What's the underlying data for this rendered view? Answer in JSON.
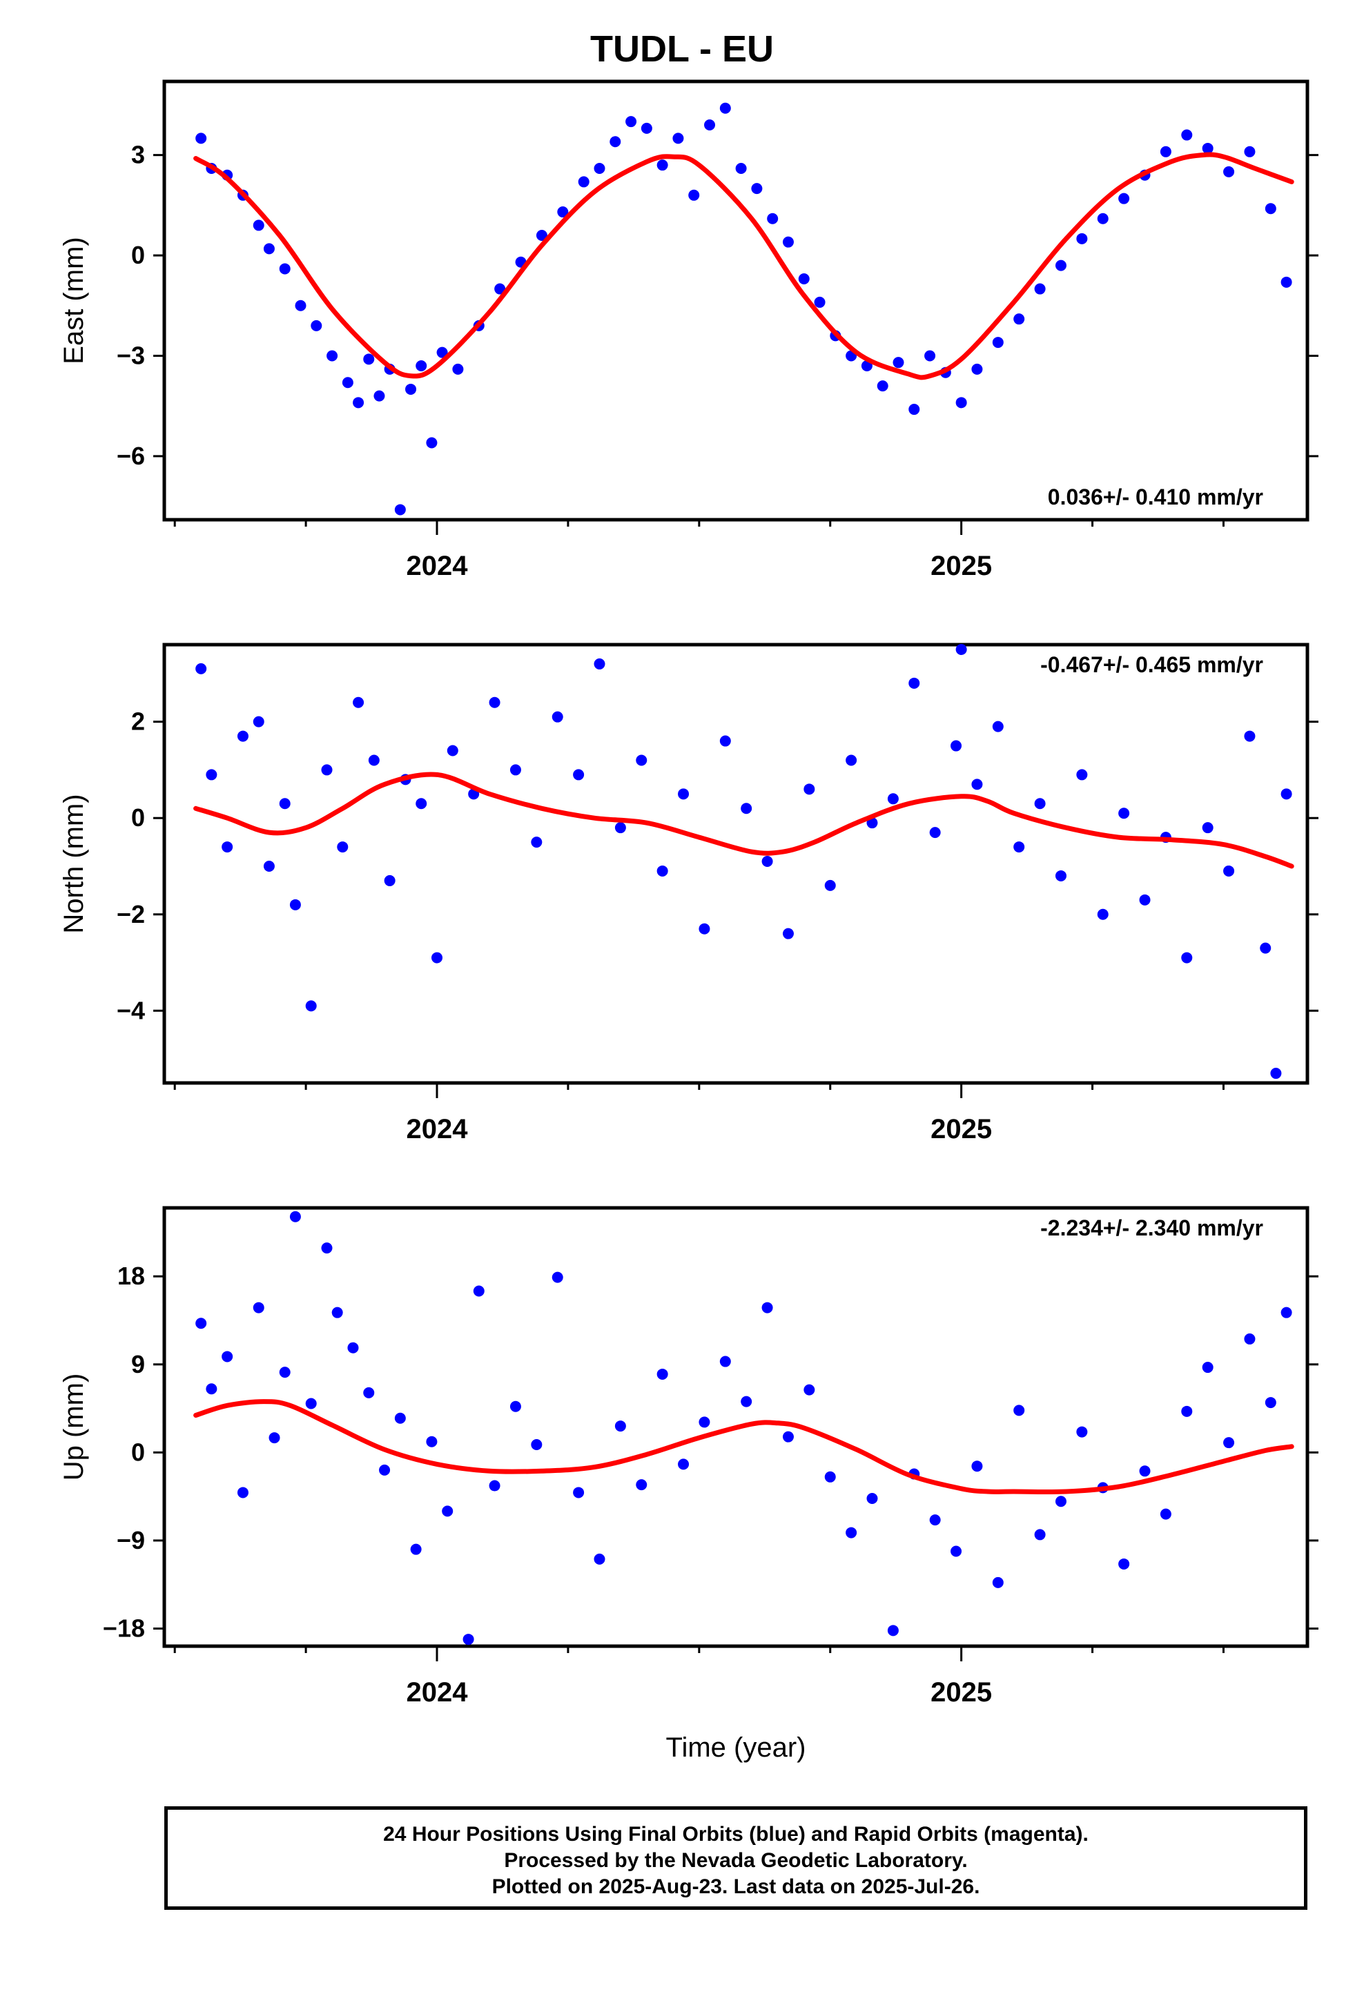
{
  "title": "TUDL - EU",
  "x_axis_label": "Time (year)",
  "footer": {
    "line1": "24 Hour Positions Using Final Orbits (blue) and Rapid Orbits (magenta).",
    "line2": "Processed by the Nevada Geodetic Laboratory.",
    "line3": "Plotted on 2025-Aug-23. Last data on 2025-Jul-26."
  },
  "colors": {
    "points": "#0000ff",
    "fit": "#ff0000",
    "frame": "#000000"
  },
  "chart_data": [
    {
      "type": "scatter",
      "ylabel": "East (mm)",
      "rate": "0.036+/- 0.410 mm/yr",
      "rate_position": "bottom-right",
      "xlim": [
        2023.48,
        2025.66
      ],
      "ylim": [
        -7.9,
        5.2
      ],
      "yticks": [
        -6,
        -3,
        0,
        3
      ],
      "ytick_labels": [
        "−6",
        "−3",
        "0",
        "3"
      ],
      "xtick_labels": [
        "2024",
        "2025"
      ],
      "fit": {
        "x": [
          2023.54,
          2023.6,
          2023.7,
          2023.8,
          2023.9,
          2023.95,
          2024.0,
          2024.1,
          2024.2,
          2024.3,
          2024.4,
          2024.45,
          2024.5,
          2024.6,
          2024.7,
          2024.8,
          2024.9,
          2024.94,
          2025.0,
          2025.1,
          2025.2,
          2025.3,
          2025.4,
          2025.46,
          2025.5,
          2025.56,
          2025.63
        ],
        "y": [
          2.9,
          2.3,
          0.6,
          -1.6,
          -3.2,
          -3.6,
          -3.3,
          -1.7,
          0.3,
          1.9,
          2.8,
          2.95,
          2.7,
          1.1,
          -1.2,
          -2.9,
          -3.55,
          -3.6,
          -3.1,
          -1.4,
          0.5,
          2.0,
          2.8,
          3.0,
          2.95,
          2.6,
          2.2
        ]
      },
      "series": [
        {
          "marker": "dot",
          "x": [
            2023.55,
            2023.57,
            2023.6,
            2023.63,
            2023.66,
            2023.68,
            2023.71,
            2023.74,
            2023.77,
            2023.8,
            2023.83,
            2023.85,
            2023.87,
            2023.89,
            2023.91,
            2023.93,
            2023.95,
            2023.97,
            2023.99,
            2024.01,
            2024.04,
            2024.08,
            2024.12,
            2024.16,
            2024.2,
            2024.24,
            2024.28,
            2024.31,
            2024.34,
            2024.37,
            2024.4,
            2024.43,
            2024.46,
            2024.49,
            2024.52,
            2024.55,
            2024.58,
            2024.61,
            2024.64,
            2024.67,
            2024.7,
            2024.73,
            2024.76,
            2024.79,
            2024.82,
            2024.85,
            2024.88,
            2024.91,
            2024.94,
            2024.97,
            2025.0,
            2025.03,
            2025.07,
            2025.11,
            2025.15,
            2025.19,
            2025.23,
            2025.27,
            2025.31,
            2025.35,
            2025.39,
            2025.43,
            2025.47,
            2025.51,
            2025.55,
            2025.59,
            2025.62
          ],
          "y": [
            3.5,
            2.6,
            2.4,
            1.8,
            0.9,
            0.2,
            -0.4,
            -1.5,
            -2.1,
            -3.0,
            -3.8,
            -4.4,
            -3.1,
            -4.2,
            -3.4,
            -7.6,
            -4.0,
            -3.3,
            -5.6,
            -2.9,
            -3.4,
            -2.1,
            -1.0,
            -0.2,
            0.6,
            1.3,
            2.2,
            2.6,
            3.4,
            4.0,
            3.8,
            2.7,
            3.5,
            1.8,
            3.9,
            4.4,
            2.6,
            2.0,
            1.1,
            0.4,
            -0.7,
            -1.4,
            -2.4,
            -3.0,
            -3.3,
            -3.9,
            -3.2,
            -4.6,
            -3.0,
            -3.5,
            -4.4,
            -3.4,
            -2.6,
            -1.9,
            -1.0,
            -0.3,
            0.5,
            1.1,
            1.7,
            2.4,
            3.1,
            3.6,
            3.2,
            2.5,
            3.1,
            1.4,
            -0.8
          ]
        }
      ]
    },
    {
      "type": "scatter",
      "ylabel": "North (mm)",
      "rate": "-0.467+/- 0.465 mm/yr",
      "rate_position": "top-right",
      "xlim": [
        2023.48,
        2025.66
      ],
      "ylim": [
        -5.5,
        3.6
      ],
      "yticks": [
        -4,
        -2,
        0,
        2
      ],
      "ytick_labels": [
        "−4",
        "−2",
        "0",
        "2"
      ],
      "xtick_labels": [
        "2024",
        "2025"
      ],
      "fit": {
        "x": [
          2023.54,
          2023.6,
          2023.68,
          2023.75,
          2023.82,
          2023.9,
          2024.0,
          2024.1,
          2024.2,
          2024.3,
          2024.4,
          2024.5,
          2024.6,
          2024.66,
          2024.72,
          2024.8,
          2024.9,
          2025.0,
          2025.05,
          2025.1,
          2025.2,
          2025.3,
          2025.4,
          2025.5,
          2025.58,
          2025.63
        ],
        "y": [
          0.2,
          0.0,
          -0.3,
          -0.2,
          0.2,
          0.7,
          0.9,
          0.5,
          0.2,
          0.0,
          -0.1,
          -0.4,
          -0.7,
          -0.7,
          -0.5,
          -0.1,
          0.3,
          0.45,
          0.35,
          0.1,
          -0.2,
          -0.4,
          -0.45,
          -0.55,
          -0.8,
          -1.0
        ]
      },
      "series": [
        {
          "marker": "dot",
          "x": [
            2023.55,
            2023.57,
            2023.6,
            2023.63,
            2023.66,
            2023.68,
            2023.71,
            2023.73,
            2023.76,
            2023.79,
            2023.82,
            2023.85,
            2023.88,
            2023.91,
            2023.94,
            2023.97,
            2024.0,
            2024.03,
            2024.07,
            2024.11,
            2024.15,
            2024.19,
            2024.23,
            2024.27,
            2024.31,
            2024.35,
            2024.39,
            2024.43,
            2024.47,
            2024.51,
            2024.55,
            2024.59,
            2024.63,
            2024.67,
            2024.71,
            2024.75,
            2024.79,
            2024.83,
            2024.87,
            2024.91,
            2024.95,
            2024.99,
            2025.0,
            2025.03,
            2025.07,
            2025.11,
            2025.15,
            2025.19,
            2025.23,
            2025.27,
            2025.31,
            2025.35,
            2025.39,
            2025.43,
            2025.47,
            2025.51,
            2025.55,
            2025.58,
            2025.6,
            2025.62
          ],
          "y": [
            3.1,
            0.9,
            -0.6,
            1.7,
            2.0,
            -1.0,
            0.3,
            -1.8,
            -3.9,
            1.0,
            -0.6,
            2.4,
            1.2,
            -1.3,
            0.8,
            0.3,
            -2.9,
            1.4,
            0.5,
            2.4,
            1.0,
            -0.5,
            2.1,
            0.9,
            3.2,
            -0.2,
            1.2,
            -1.1,
            0.5,
            -2.3,
            1.6,
            0.2,
            -0.9,
            -2.4,
            0.6,
            -1.4,
            1.2,
            -0.1,
            0.4,
            2.8,
            -0.3,
            1.5,
            3.5,
            0.7,
            1.9,
            -0.6,
            0.3,
            -1.2,
            0.9,
            -2.0,
            0.1,
            -1.7,
            -0.4,
            -2.9,
            -0.2,
            -1.1,
            1.7,
            -2.7,
            -5.3,
            0.5
          ]
        }
      ]
    },
    {
      "type": "scatter",
      "ylabel": "Up (mm)",
      "xlabel": "Time (year)",
      "rate": "-2.234+/- 2.340 mm/yr",
      "rate_position": "top-right",
      "xlim": [
        2023.48,
        2025.66
      ],
      "ylim": [
        -19.8,
        25.0
      ],
      "yticks": [
        -18,
        -9,
        0,
        9,
        18
      ],
      "ytick_labels": [
        "−18",
        "−9",
        "0",
        "9",
        "18"
      ],
      "xtick_labels": [
        "2024",
        "2025"
      ],
      "fit": {
        "x": [
          2023.54,
          2023.6,
          2023.67,
          2023.72,
          2023.8,
          2023.9,
          2024.0,
          2024.1,
          2024.2,
          2024.3,
          2024.4,
          2024.5,
          2024.6,
          2024.65,
          2024.7,
          2024.8,
          2024.9,
          2025.0,
          2025.05,
          2025.1,
          2025.2,
          2025.3,
          2025.4,
          2025.5,
          2025.58,
          2025.63
        ],
        "y": [
          3.8,
          4.8,
          5.2,
          4.8,
          2.8,
          0.3,
          -1.2,
          -1.9,
          -1.9,
          -1.5,
          -0.2,
          1.5,
          2.9,
          3.0,
          2.5,
          0.3,
          -2.3,
          -3.7,
          -4.0,
          -4.0,
          -4.0,
          -3.5,
          -2.3,
          -0.9,
          0.2,
          0.6
        ]
      },
      "series": [
        {
          "marker": "dot",
          "x": [
            2023.55,
            2023.57,
            2023.6,
            2023.63,
            2023.66,
            2023.69,
            2023.71,
            2023.73,
            2023.76,
            2023.79,
            2023.81,
            2023.84,
            2023.87,
            2023.9,
            2023.93,
            2023.96,
            2023.99,
            2024.02,
            2024.06,
            2024.08,
            2024.11,
            2024.15,
            2024.19,
            2024.23,
            2024.27,
            2024.31,
            2024.35,
            2024.39,
            2024.43,
            2024.47,
            2024.51,
            2024.55,
            2024.59,
            2024.63,
            2024.67,
            2024.71,
            2024.75,
            2024.79,
            2024.83,
            2024.87,
            2024.91,
            2024.95,
            2024.99,
            2025.03,
            2025.07,
            2025.11,
            2025.15,
            2025.19,
            2025.23,
            2025.27,
            2025.31,
            2025.35,
            2025.39,
            2025.43,
            2025.47,
            2025.51,
            2025.55,
            2025.59,
            2025.62
          ],
          "y": [
            13.2,
            6.5,
            9.8,
            -4.1,
            14.8,
            1.5,
            8.2,
            24.1,
            5.0,
            20.9,
            14.3,
            10.7,
            6.1,
            -1.8,
            3.5,
            -9.9,
            1.1,
            -6.0,
            -19.1,
            16.5,
            -3.4,
            4.7,
            0.8,
            17.9,
            -4.1,
            -10.9,
            2.7,
            -3.3,
            8.0,
            -1.2,
            3.1,
            9.3,
            5.2,
            14.8,
            1.6,
            6.4,
            -2.5,
            -8.2,
            -4.7,
            -18.2,
            -2.2,
            -6.9,
            -10.1,
            -1.4,
            -13.3,
            4.3,
            -8.4,
            -5.0,
            2.1,
            -3.6,
            -11.4,
            -1.9,
            -6.3,
            4.2,
            8.7,
            1.0,
            11.6,
            5.1,
            14.3
          ]
        }
      ]
    }
  ]
}
